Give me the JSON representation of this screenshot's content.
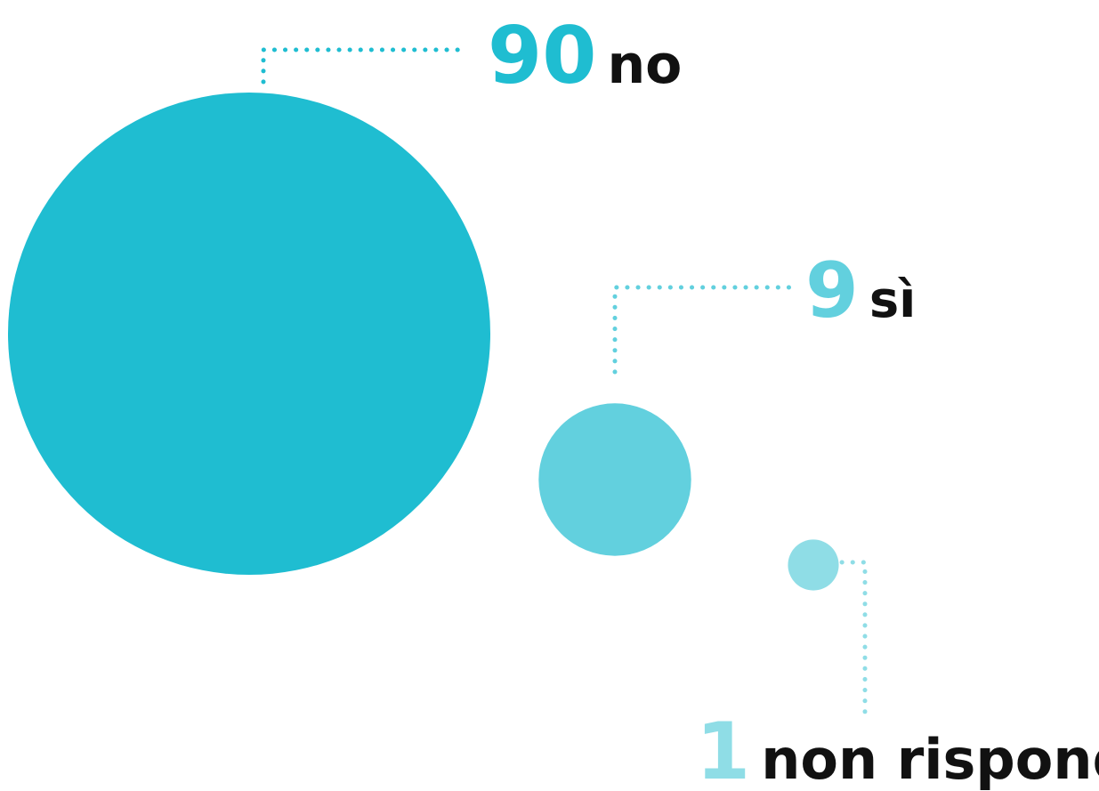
{
  "chart_data": {
    "type": "bubble",
    "title": "",
    "items": [
      {
        "value": 90,
        "label": "no",
        "color": "#1fbdd1"
      },
      {
        "value": 9,
        "label": "sì",
        "color": "#62d0de"
      },
      {
        "value": 1,
        "label": "non risponde",
        "color": "#8fdde6"
      }
    ],
    "label_color": "#111111",
    "leader_style": "dotted"
  }
}
